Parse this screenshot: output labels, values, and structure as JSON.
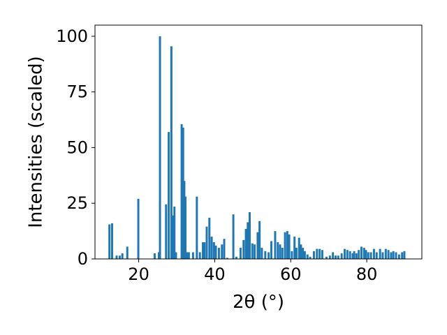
{
  "chart_data": {
    "type": "bar",
    "xlabel": "2θ (°)",
    "ylabel": "Intensities (scaled)",
    "xlim": [
      8.5,
      94.5
    ],
    "ylim": [
      0,
      105
    ],
    "grid": false,
    "bar_width": 0.55,
    "bar_color": "#1f77b4",
    "xticks": [
      20,
      40,
      60,
      80
    ],
    "yticks": [
      0,
      25,
      50,
      75,
      100
    ],
    "x": [
      12.3,
      13.0,
      14.2,
      15.0,
      15.7,
      17.0,
      19.9,
      24.2,
      25.3,
      25.6,
      27.2,
      27.9,
      28.6,
      29.0,
      29.4,
      29.8,
      31.3,
      31.7,
      32.0,
      32.3,
      32.7,
      33.2,
      34.3,
      35.3,
      36.1,
      36.9,
      37.3,
      37.9,
      38.6,
      39.2,
      39.8,
      40.3,
      41.1,
      41.9,
      42.5,
      43.3,
      44.9,
      45.7,
      46.8,
      47.6,
      48.2,
      48.7,
      49.2,
      49.9,
      50.5,
      51.3,
      51.8,
      52.4,
      53.3,
      54.2,
      54.9,
      55.9,
      56.6,
      57.2,
      57.8,
      58.5,
      59.1,
      59.6,
      60.3,
      61.0,
      61.5,
      62.2,
      62.7,
      63.2,
      63.7,
      64.4,
      65.1,
      66.1,
      66.9,
      67.6,
      68.3,
      69.4,
      70.3,
      71.1,
      71.8,
      72.5,
      73.4,
      74.2,
      74.9,
      75.6,
      76.3,
      76.7,
      77.3,
      77.9,
      78.6,
      79.3,
      79.8,
      80.4,
      81.1,
      81.9,
      82.6,
      83.5,
      84.2,
      85.0,
      85.7,
      86.4,
      87.0,
      87.7,
      88.5,
      89.3,
      89.9
    ],
    "values": [
      15.5,
      16,
      1.5,
      1.5,
      2.5,
      5.5,
      27,
      2.5,
      3,
      100,
      24.5,
      57,
      95.5,
      19.5,
      23.5,
      3,
      60.5,
      59,
      35,
      28,
      3,
      3,
      3,
      28,
      3,
      7.5,
      7.5,
      14.5,
      18.5,
      10,
      7.5,
      6,
      5,
      6.5,
      9,
      0.5,
      20,
      1,
      5,
      8.5,
      13.5,
      16.5,
      21,
      7,
      6.5,
      12,
      17,
      5,
      3.5,
      3,
      8,
      12.5,
      7.5,
      6.5,
      5,
      12,
      12.5,
      11,
      3.5,
      10,
      5,
      9.5,
      6.5,
      5,
      3.5,
      2,
      1,
      3.5,
      4.5,
      4.5,
      4,
      1,
      1.5,
      3,
      1.5,
      1.5,
      2.5,
      4.5,
      4,
      3.5,
      2.5,
      3.5,
      2.5,
      4,
      5.5,
      5,
      4,
      3,
      3,
      4.5,
      3,
      4.5,
      3,
      4.5,
      4,
      3,
      3.5,
      3,
      2,
      3,
      3.5
    ]
  }
}
